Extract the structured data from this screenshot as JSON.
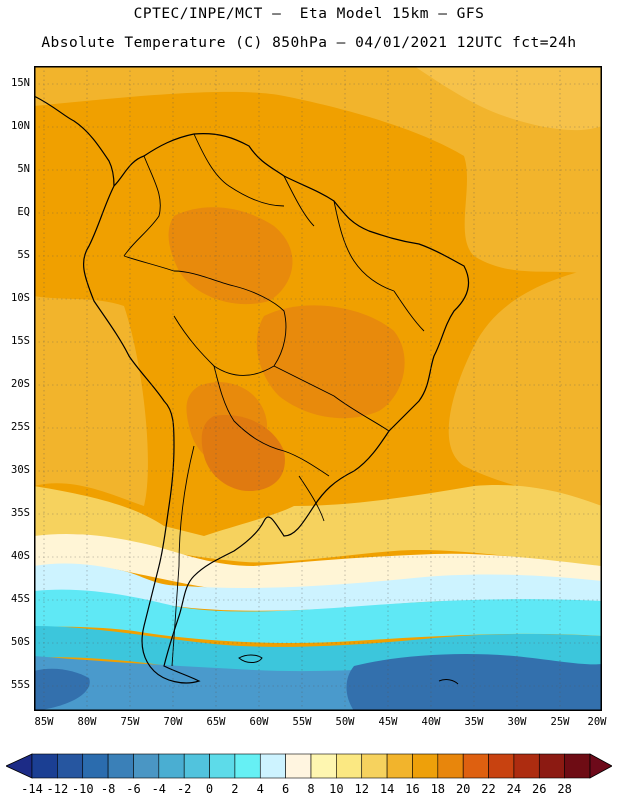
{
  "header": {
    "line1": "CPTEC/INPE/MCT –  Eta Model 15km – GFS",
    "line2": "Absolute Temperature (C) 850hPa – 04/01/2021 12UTC fct=24h"
  },
  "map": {
    "lat_labels": [
      "15N",
      "10N",
      "5N",
      "EQ",
      "5S",
      "10S",
      "15S",
      "20S",
      "25S",
      "30S",
      "35S",
      "40S",
      "45S",
      "50S",
      "55S"
    ],
    "lon_labels": [
      "85W",
      "80W",
      "75W",
      "70W",
      "65W",
      "60W",
      "55W",
      "50W",
      "45W",
      "40W",
      "35W",
      "30W",
      "25W",
      "20W"
    ],
    "lat_range": [
      17,
      -58
    ],
    "lon_range": [
      -86,
      -20
    ],
    "field": "temperature_850hPa_celsius",
    "colors": {
      "warm_orange": "#f0a000",
      "hot_orange": "#e88a0c",
      "light_orange": "#f2b42c",
      "pale_yellow": "#f6d25e",
      "cream": "#fff5d6",
      "light_cyan": "#cdf3ff",
      "cyan": "#5fe8f5",
      "teal": "#3cc6dc",
      "steel_blue": "#4a9acc",
      "deep_blue": "#3370ad",
      "coastline": "#000000"
    }
  },
  "colorbar": {
    "labels": [
      "-14",
      "-12",
      "-10",
      "-8",
      "-6",
      "-4",
      "-2",
      "0",
      "2",
      "4",
      "6",
      "8",
      "10",
      "12",
      "14",
      "16",
      "18",
      "20",
      "22",
      "24",
      "26",
      "28"
    ],
    "colors": [
      "#1b3f93",
      "#2656a0",
      "#2b6cae",
      "#3a80b8",
      "#4a96c4",
      "#4aaed2",
      "#51c3dd",
      "#5ddbe9",
      "#66f0f4",
      "#cdf3ff",
      "#fff5e0",
      "#fef6b0",
      "#fbe882",
      "#f6d25e",
      "#f2b42c",
      "#eea00a",
      "#e8860c",
      "#de6010",
      "#c84210",
      "#ad2c10",
      "#8c1a12",
      "#6e0c14"
    ],
    "under_color": "#1c2b86",
    "over_color": "#6d0a1a"
  }
}
